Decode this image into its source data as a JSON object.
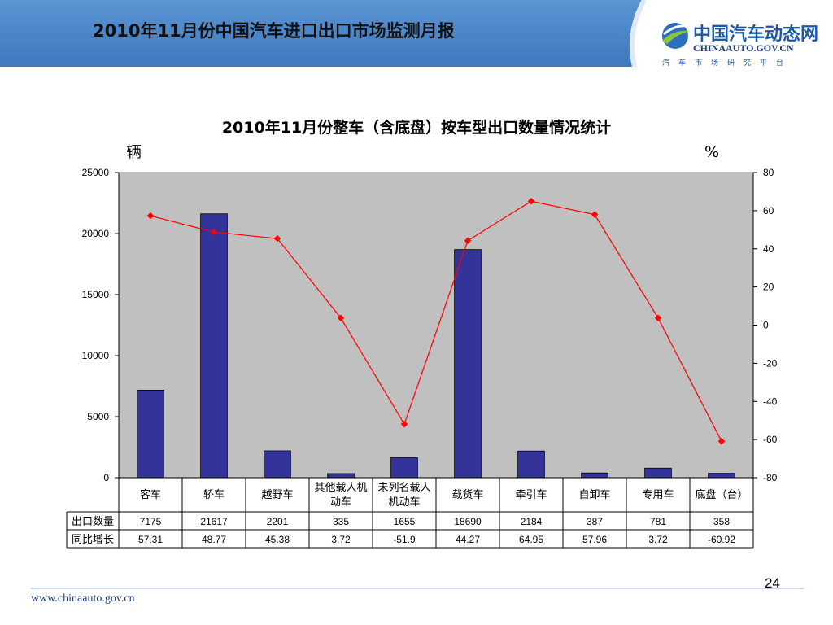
{
  "header": {
    "title": "2010年11月份中国汽车进口出口市场监测月报",
    "brand_color": "#4a86c8"
  },
  "logo": {
    "cn": "中国汽车动态网",
    "en": "CHINAAUTO.GOV.CN",
    "sub": "汽车市场研究平台",
    "icon": "globe-swoosh-icon"
  },
  "chart_data": {
    "type": "bar",
    "title": "2010年11月份整车（含底盘）按车型出口数量情况统计",
    "ylabel": "辆",
    "y2label": "%",
    "ylim": [
      0,
      25000
    ],
    "y2lim": [
      -80,
      80
    ],
    "yticks": [
      0,
      5000,
      10000,
      15000,
      20000,
      25000
    ],
    "y2ticks": [
      -80,
      -60,
      -40,
      -20,
      0,
      20,
      40,
      60,
      80
    ],
    "grid": false,
    "bar_color": "#333399",
    "line_color": "#ff0000",
    "plot_bg": "#c0c0c0",
    "categories": [
      [
        "客车"
      ],
      [
        "轿车"
      ],
      [
        "越野车"
      ],
      [
        "其他载人机",
        "动车"
      ],
      [
        "未列名载人",
        "机动车"
      ],
      [
        "载货车"
      ],
      [
        "牵引车"
      ],
      [
        "自卸车"
      ],
      [
        "专用车"
      ],
      [
        "底盘（台）"
      ]
    ],
    "series": [
      {
        "name": "出口数量",
        "type": "bar",
        "axis": "left",
        "values": [
          7175,
          21617,
          2201,
          335,
          1655,
          18690,
          2184,
          387,
          781,
          358
        ]
      },
      {
        "name": "同比增长",
        "type": "line",
        "axis": "right",
        "values": [
          57.31,
          48.77,
          45.38,
          3.72,
          -51.9,
          44.27,
          64.95,
          57.96,
          3.72,
          -60.92
        ]
      }
    ],
    "table_rows": [
      {
        "label": "出口数量",
        "cells": [
          "7175",
          "21617",
          "2201",
          "335",
          "1655",
          "18690",
          "2184",
          "387",
          "781",
          "358"
        ]
      },
      {
        "label": "同比增长",
        "cells": [
          "57.31",
          "48.77",
          "45.38",
          "3.72",
          "-51.9",
          "44.27",
          "64.95",
          "57.96",
          "3.72",
          "-60.92"
        ]
      }
    ]
  },
  "footer": {
    "url": "www.chinaauto.gov.cn",
    "page": "24"
  }
}
